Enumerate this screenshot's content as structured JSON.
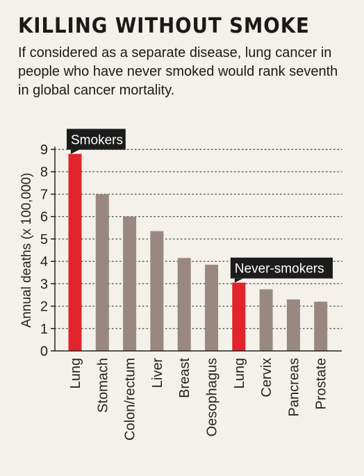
{
  "title": "KILLING WITHOUT SMOKE",
  "subtitle": "If considered as a separate disease, lung cancer in people who have never smoked would rank seventh in global cancer mortality.",
  "colors": {
    "background": "#f3f1ea",
    "highlight": "#e3232c",
    "bar": "#998880",
    "label_bg": "#1c1c1c"
  },
  "chart_data": {
    "type": "bar",
    "ylabel": "Annual deaths (x 100,000)",
    "xlabel": "",
    "ylim": [
      0,
      9
    ],
    "yticks": [
      0,
      1,
      2,
      3,
      4,
      5,
      6,
      7,
      8,
      9
    ],
    "grid": "dotted horizontal",
    "categories": [
      "Lung",
      "Stomach",
      "Colon/rectum",
      "Liver",
      "Breast",
      "Oesophagus",
      "Lung",
      "Cervix",
      "Pancreas",
      "Prostate"
    ],
    "values": [
      8.8,
      7.0,
      6.0,
      5.35,
      4.15,
      3.85,
      3.05,
      2.75,
      2.3,
      2.2
    ],
    "highlighted": [
      true,
      false,
      false,
      false,
      false,
      false,
      true,
      false,
      false,
      false
    ],
    "annotations": [
      {
        "label": "Smokers",
        "category_index": 0
      },
      {
        "label": "Never-smokers",
        "category_index": 6
      }
    ]
  }
}
